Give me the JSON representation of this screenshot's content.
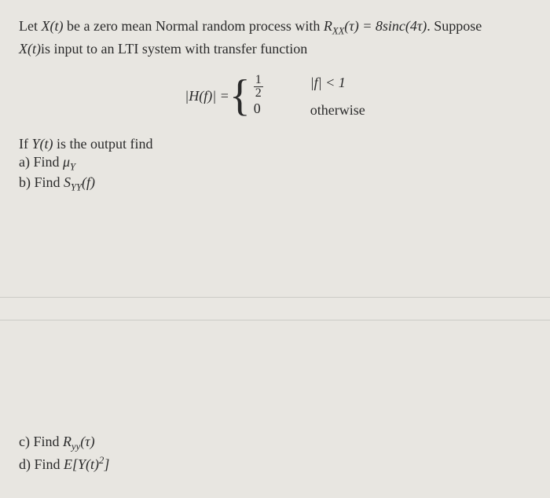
{
  "background_color": "#e8e6e1",
  "text_color": "#2a2a2a",
  "font_family": "Times New Roman",
  "problem": {
    "line1_a": "Let ",
    "line1_x": "X(t)",
    "line1_b": " be a zero mean Normal random process with ",
    "line1_rxx": "R",
    "line1_rxx_sub": "XX",
    "line1_tau": "(τ) = 8sinc(4τ)",
    "line1_c": ". Suppose",
    "line2_x": "X(t)",
    "line2_a": "is input to an LTI system with transfer function"
  },
  "equation": {
    "lhs": "|H(f)| = ",
    "case1_num": "1",
    "case1_den": "2",
    "case2": "0",
    "cond1": "|f| < 1",
    "cond2": "otherwise"
  },
  "output_line": {
    "prefix": "If ",
    "yt": "Y(t)",
    "suffix": " is the output find"
  },
  "parts": {
    "a_label": "a)",
    "a_text1": "  Find ",
    "a_mu": "μ",
    "a_sub": "Y",
    "b_label": "b)",
    "b_text1": "  Find ",
    "b_s": "S",
    "b_sub": "YY",
    "b_arg": "(f)",
    "c_label": "c)",
    "c_text1": "  Find ",
    "c_r": "R",
    "c_sub": "yy",
    "c_arg": "(τ)",
    "d_label": "d)",
    "d_text1": "  Find ",
    "d_e": "E[Y(t)",
    "d_sup": "2",
    "d_close": "]"
  }
}
